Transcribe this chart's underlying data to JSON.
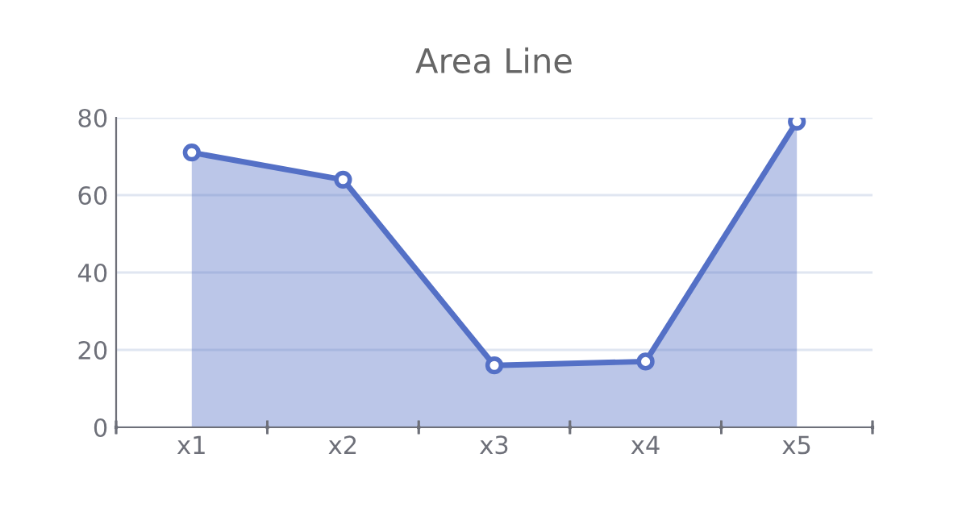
{
  "chart_data": {
    "type": "area",
    "title": "Area Line",
    "categories": [
      "x1",
      "x2",
      "x3",
      "x4",
      "x5"
    ],
    "series": [
      {
        "color": "#5470c6",
        "values": [
          71,
          64,
          16,
          17,
          79
        ]
      }
    ],
    "ylim": [
      0,
      80
    ],
    "yticks": [
      0,
      20,
      40,
      60,
      80
    ],
    "grid": "y",
    "marker": "circle",
    "line_style": "solid"
  }
}
